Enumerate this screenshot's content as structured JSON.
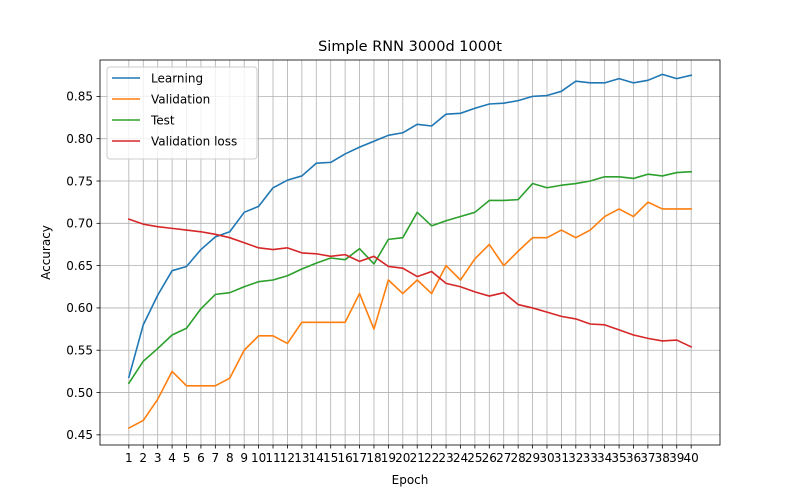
{
  "chart_data": {
    "type": "line",
    "title": "Simple RNN 3000d 1000t",
    "xlabel": "Epoch",
    "ylabel": "Accuracy",
    "x": [
      1,
      2,
      3,
      4,
      5,
      6,
      7,
      8,
      9,
      10,
      11,
      12,
      13,
      14,
      15,
      16,
      17,
      18,
      19,
      20,
      21,
      22,
      23,
      24,
      25,
      26,
      27,
      28,
      29,
      30,
      31,
      32,
      33,
      34,
      35,
      36,
      37,
      38,
      39,
      40
    ],
    "x_tick_labels": [
      "1",
      "2",
      "3",
      "4",
      "5",
      "6",
      "7",
      "8",
      "9",
      "10",
      "11",
      "12",
      "13",
      "14",
      "15",
      "16",
      "17",
      "18",
      "19",
      "20",
      "21",
      "22",
      "23",
      "24",
      "25",
      "26",
      "27",
      "28",
      "29",
      "30",
      "31",
      "32",
      "33",
      "34",
      "35",
      "36",
      "37",
      "38",
      "39",
      "40"
    ],
    "y_ticks": [
      0.45,
      0.5,
      0.55,
      0.6,
      0.65,
      0.7,
      0.75,
      0.8,
      0.85
    ],
    "y_tick_labels": [
      "0.45",
      "0.50",
      "0.55",
      "0.60",
      "0.65",
      "0.70",
      "0.75",
      "0.80",
      "0.85"
    ],
    "xlim": [
      -1,
      42
    ],
    "ylim": [
      0.438,
      0.893
    ],
    "grid": true,
    "legend_position": "upper left",
    "series": [
      {
        "name": "Learning",
        "color": "#1f77b4",
        "values": [
          0.518,
          0.58,
          0.615,
          0.644,
          0.649,
          0.669,
          0.684,
          0.69,
          0.713,
          0.72,
          0.742,
          0.751,
          0.756,
          0.771,
          0.772,
          0.782,
          0.79,
          0.797,
          0.804,
          0.807,
          0.817,
          0.815,
          0.829,
          0.83,
          0.836,
          0.841,
          0.842,
          0.845,
          0.85,
          0.851,
          0.856,
          0.868,
          0.866,
          0.866,
          0.871,
          0.866,
          0.869,
          0.876,
          0.871,
          0.875
        ]
      },
      {
        "name": "Validation",
        "color": "#ff7f0e",
        "values": [
          0.458,
          0.467,
          0.492,
          0.525,
          0.508,
          0.508,
          0.508,
          0.517,
          0.55,
          0.567,
          0.567,
          0.558,
          0.583,
          0.583,
          0.583,
          0.583,
          0.617,
          0.575,
          0.633,
          0.617,
          0.633,
          0.617,
          0.65,
          0.633,
          0.658,
          0.675,
          0.65,
          0.667,
          0.683,
          0.683,
          0.692,
          0.683,
          0.692,
          0.708,
          0.717,
          0.708,
          0.725,
          0.717,
          0.717,
          0.717
        ]
      },
      {
        "name": "Test",
        "color": "#2ca02c",
        "values": [
          0.511,
          0.537,
          0.552,
          0.568,
          0.576,
          0.599,
          0.616,
          0.618,
          0.625,
          0.631,
          0.633,
          0.638,
          0.646,
          0.653,
          0.659,
          0.657,
          0.67,
          0.652,
          0.681,
          0.683,
          0.713,
          0.697,
          0.703,
          0.708,
          0.713,
          0.727,
          0.727,
          0.728,
          0.747,
          0.742,
          0.745,
          0.747,
          0.75,
          0.755,
          0.755,
          0.753,
          0.758,
          0.756,
          0.76,
          0.761
        ]
      },
      {
        "name": "Validation loss",
        "color": "#d62728",
        "values": [
          0.705,
          0.699,
          0.696,
          0.694,
          0.692,
          0.69,
          0.687,
          0.683,
          0.677,
          0.671,
          0.669,
          0.671,
          0.665,
          0.664,
          0.661,
          0.663,
          0.655,
          0.661,
          0.649,
          0.647,
          0.637,
          0.643,
          0.629,
          0.625,
          0.619,
          0.614,
          0.618,
          0.604,
          0.6,
          0.595,
          0.59,
          0.587,
          0.581,
          0.58,
          0.574,
          0.568,
          0.564,
          0.561,
          0.562,
          0.554
        ]
      }
    ]
  }
}
